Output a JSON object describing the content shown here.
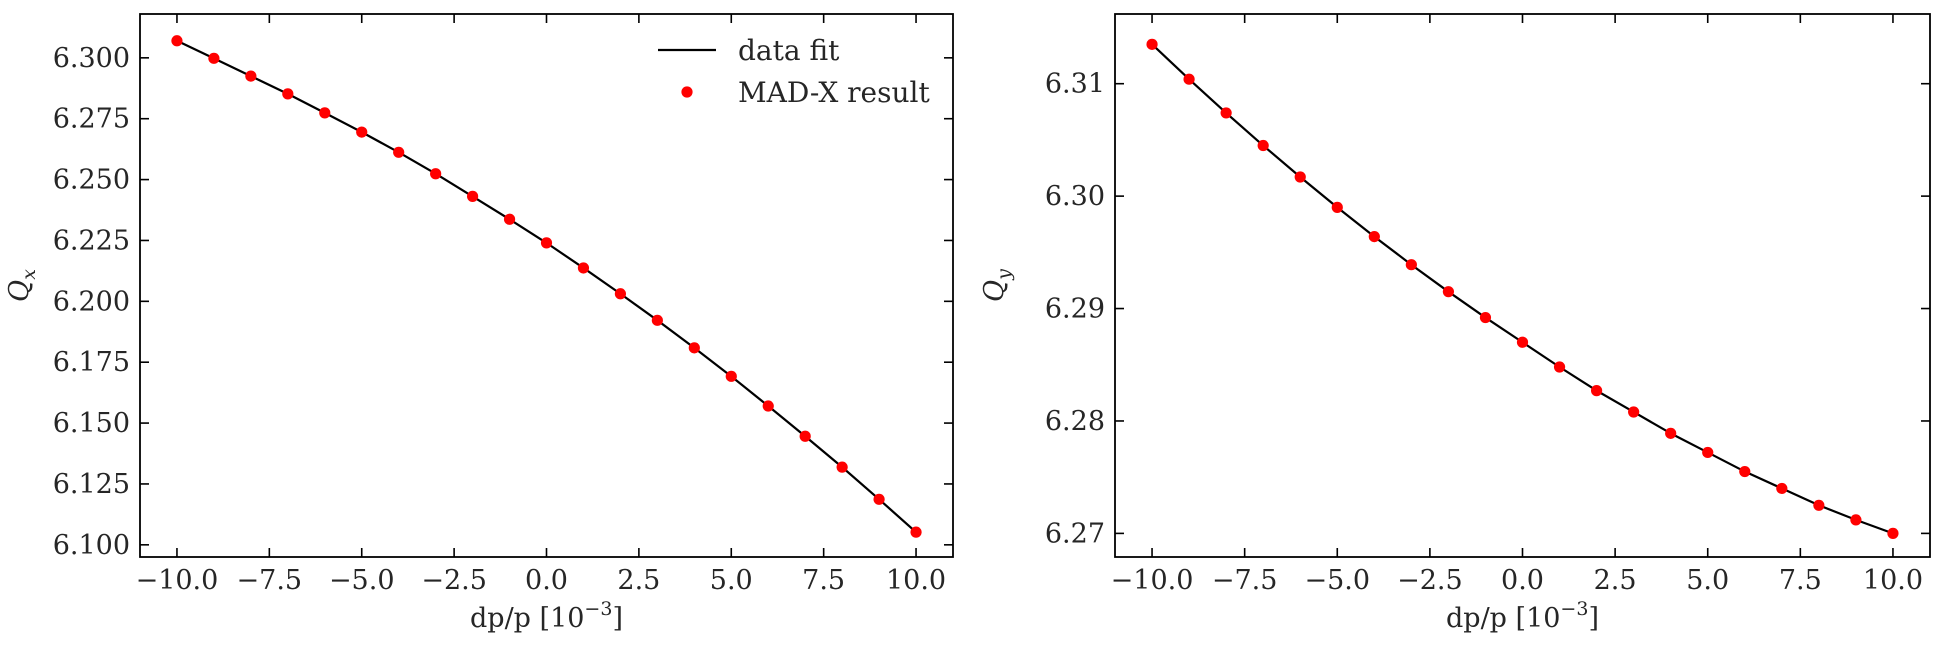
{
  "chart_data": [
    {
      "type": "line",
      "xlabel": "dp/p [10",
      "xlabel_sup": "−3",
      "xlabel_close": "]",
      "ylabel_main": "Q",
      "ylabel_sub": "x",
      "xlim": [
        -11.0,
        11.0
      ],
      "ylim": [
        6.095,
        6.318
      ],
      "xticks": [
        -10.0,
        -7.5,
        -5.0,
        -2.5,
        0.0,
        2.5,
        5.0,
        7.5,
        10.0
      ],
      "xtick_labels": [
        "−10.0",
        "−7.5",
        "−5.0",
        "−2.5",
        "0.0",
        "2.5",
        "5.0",
        "7.5",
        "10.0"
      ],
      "yticks": [
        6.1,
        6.125,
        6.15,
        6.175,
        6.2,
        6.225,
        6.25,
        6.275,
        6.3
      ],
      "ytick_labels": [
        "6.100",
        "6.125",
        "6.150",
        "6.175",
        "6.200",
        "6.225",
        "6.250",
        "6.275",
        "6.300"
      ],
      "grid": false,
      "legend": "top-right",
      "series": [
        {
          "name": "data fit",
          "kind": "line",
          "color": "#000000",
          "x": [
            -10,
            -9,
            -8,
            -7,
            -6,
            -5,
            -4,
            -3,
            -2,
            -1,
            0,
            1,
            2,
            3,
            4,
            5,
            6,
            7,
            8,
            9,
            10
          ],
          "y": [
            6.307,
            6.2998,
            6.2925,
            6.2852,
            6.2774,
            6.2695,
            6.2612,
            6.2524,
            6.2431,
            6.2337,
            6.224,
            6.2137,
            6.2031,
            6.1922,
            6.1809,
            6.1692,
            6.157,
            6.1446,
            6.1319,
            6.1187,
            6.1052
          ]
        },
        {
          "name": "MAD-X result",
          "kind": "scatter",
          "color": "#ff0000",
          "x": [
            -10,
            -9,
            -8,
            -7,
            -6,
            -5,
            -4,
            -3,
            -2,
            -1,
            0,
            1,
            2,
            3,
            4,
            5,
            6,
            7,
            8,
            9,
            10
          ],
          "y": [
            6.307,
            6.2998,
            6.2925,
            6.2852,
            6.2774,
            6.2695,
            6.2612,
            6.2524,
            6.2431,
            6.2337,
            6.224,
            6.2137,
            6.2031,
            6.1922,
            6.1809,
            6.1692,
            6.157,
            6.1446,
            6.1319,
            6.1187,
            6.1052
          ]
        }
      ]
    },
    {
      "type": "line",
      "xlabel": "dp/p [10",
      "xlabel_sup": "−3",
      "xlabel_close": "]",
      "ylabel_main": "Q",
      "ylabel_sub": "y",
      "xlim": [
        -11.0,
        11.0
      ],
      "ylim": [
        6.2679,
        6.3162
      ],
      "xticks": [
        -10.0,
        -7.5,
        -5.0,
        -2.5,
        0.0,
        2.5,
        5.0,
        7.5,
        10.0
      ],
      "xtick_labels": [
        "−10.0",
        "−7.5",
        "−5.0",
        "−2.5",
        "0.0",
        "2.5",
        "5.0",
        "7.5",
        "10.0"
      ],
      "yticks": [
        6.27,
        6.28,
        6.29,
        6.3,
        6.31
      ],
      "ytick_labels": [
        "6.27",
        "6.28",
        "6.29",
        "6.30",
        "6.31"
      ],
      "grid": false,
      "legend": "none",
      "series": [
        {
          "kind": "line",
          "color": "#000000",
          "x": [
            -10,
            -9,
            -8,
            -7,
            -6,
            -5,
            -4,
            -3,
            -2,
            -1,
            0,
            1,
            2,
            3,
            4,
            5,
            6,
            7,
            8,
            9,
            10
          ],
          "y": [
            6.3135,
            6.3104,
            6.3074,
            6.3045,
            6.3017,
            6.299,
            6.2964,
            6.2939,
            6.2915,
            6.2892,
            6.287,
            6.2848,
            6.2827,
            6.2808,
            6.2789,
            6.2772,
            6.2755,
            6.274,
            6.2725,
            6.2712,
            6.27
          ]
        },
        {
          "kind": "scatter",
          "color": "#ff0000",
          "x": [
            -10,
            -9,
            -8,
            -7,
            -6,
            -5,
            -4,
            -3,
            -2,
            -1,
            0,
            1,
            2,
            3,
            4,
            5,
            6,
            7,
            8,
            9,
            10
          ],
          "y": [
            6.3135,
            6.3104,
            6.3074,
            6.3045,
            6.3017,
            6.299,
            6.2964,
            6.2939,
            6.2915,
            6.2892,
            6.287,
            6.2848,
            6.2827,
            6.2808,
            6.2789,
            6.2772,
            6.2755,
            6.274,
            6.2725,
            6.2712,
            6.27
          ]
        }
      ]
    }
  ]
}
